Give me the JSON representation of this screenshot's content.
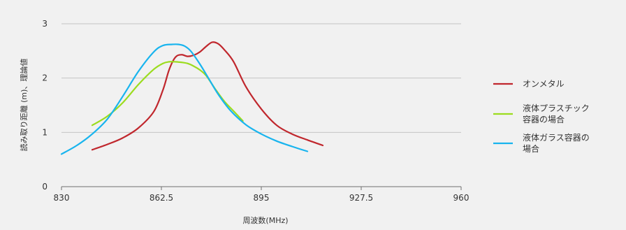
{
  "chart_data": {
    "type": "line",
    "title": "",
    "xlabel": "周波数(MHz)",
    "ylabel": "読み取り距離 (m)、理論値",
    "xlim": [
      830,
      960
    ],
    "ylim": [
      0,
      3
    ],
    "x_ticks": [
      "830",
      "862.5",
      "895",
      "927.5",
      "960"
    ],
    "y_ticks": [
      "0",
      "1",
      "2",
      "3"
    ],
    "grid": "horizontal",
    "legend": "right",
    "series": [
      {
        "name": "オンメタル",
        "color": "#c0272d",
        "x": [
          840,
          845,
          850,
          855,
          860,
          863,
          865,
          867,
          869,
          871,
          873,
          875,
          877,
          879,
          881,
          883,
          886,
          890,
          895,
          900,
          905,
          910,
          915
        ],
        "y": [
          0.68,
          0.78,
          0.9,
          1.08,
          1.38,
          1.78,
          2.15,
          2.38,
          2.43,
          2.4,
          2.42,
          2.48,
          2.58,
          2.66,
          2.63,
          2.52,
          2.3,
          1.84,
          1.43,
          1.13,
          0.97,
          0.86,
          0.76
        ]
      },
      {
        "name": "液体プラスチック容器の場合",
        "color": "#9bdc1e",
        "x": [
          840,
          845,
          850,
          855,
          860,
          863,
          865,
          867,
          869,
          871,
          873,
          875,
          877,
          880,
          883,
          886,
          889
        ],
        "y": [
          1.13,
          1.3,
          1.55,
          1.88,
          2.16,
          2.27,
          2.3,
          2.3,
          2.29,
          2.27,
          2.22,
          2.15,
          2.05,
          1.8,
          1.57,
          1.39,
          1.21
        ]
      },
      {
        "name": "液体ガラス容器の場合",
        "color": "#18b4ee",
        "x": [
          830,
          835,
          840,
          845,
          850,
          855,
          860,
          863,
          866,
          868,
          870,
          872,
          875,
          878,
          881,
          885,
          890,
          895,
          900,
          905,
          910
        ],
        "y": [
          0.6,
          0.76,
          0.97,
          1.25,
          1.67,
          2.12,
          2.48,
          2.6,
          2.62,
          2.62,
          2.59,
          2.5,
          2.26,
          1.98,
          1.7,
          1.4,
          1.14,
          0.97,
          0.84,
          0.74,
          0.65
        ]
      }
    ]
  }
}
